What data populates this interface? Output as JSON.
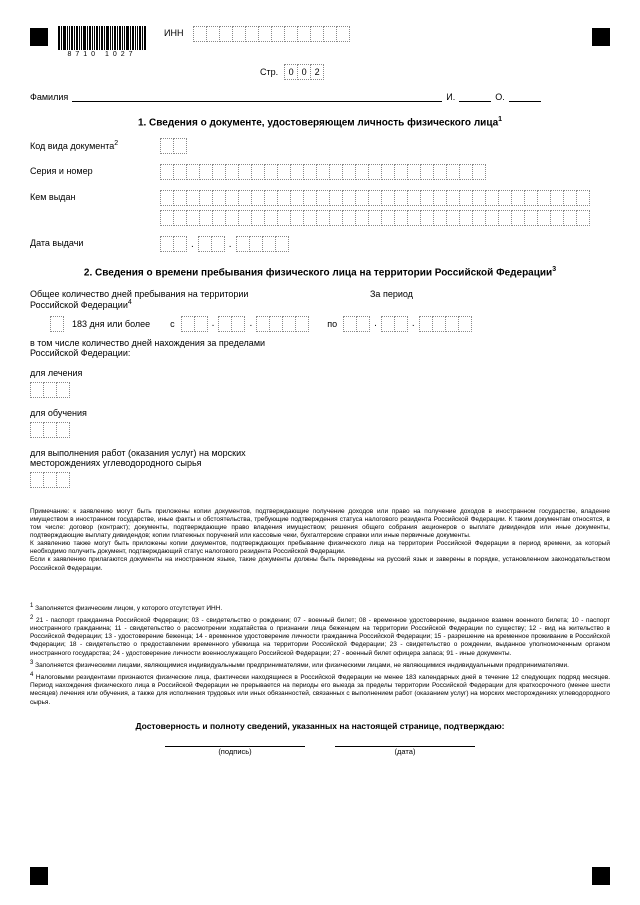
{
  "header": {
    "barcode_num": "8710   1027",
    "inn_label": "ИНН",
    "page_label": "Стр.",
    "page_digits": [
      "0",
      "0",
      "2"
    ]
  },
  "fio": {
    "surname_label": "Фамилия",
    "i_label": "И.",
    "o_label": "О."
  },
  "section1": {
    "title": "1. Сведения о документе, удостоверяющем личность физического лица",
    "code_label": "Код вида документа",
    "series_label": "Серия и номер",
    "issuer_label": "Кем выдан",
    "date_label": "Дата выдачи"
  },
  "section2": {
    "title": "2. Сведения о времени пребывания физического лица на территории Российской Федерации",
    "total_label": "Общее количество дней пребывания на территории Российской Федерации",
    "period_label": "За период",
    "days_label": "183 дня или более",
    "from_label": "с",
    "to_label": "по",
    "outside_label": "в том числе количество дней нахождения за пределами Российской Федерации:",
    "treatment_label": "для лечения",
    "study_label": "для обучения",
    "work_label": "для выполнения работ (оказания услуг) на морских месторождениях углеводородного сырья"
  },
  "note": "Примечание: к заявлению могут быть приложены копии документов, подтверждающие получение доходов или право на получение доходов в иностранном государстве, владение имуществом в иностранном государстве, иные факты и обстоятельства, требующие подтверждения статуса налогового резидента Российской Федерации. К таким документам относятся, в том числе: договор (контракт); документы, подтверждающие право владения имуществом; решения общего собрания акционеров о выплате дивидендов или иные документы, подтверждающие выплату дивидендов; копии платежных поручений или кассовые чеки, бухгалтерские справки или иные первичные документы.\nК заявлению также могут быть приложены копии документов, подтверждающих пребывание физического лица на территории Российской Федерации в период времени, за который необходимо получить документ, подтверждающий статус налогового резидента Российской Федерации.\nЕсли к заявлению прилагаются документы на иностранном языке, такие документы должны быть переведены на русский язык и заверены в порядке, установленном законодательством Российской Федерации.",
  "footnotes": {
    "f1": "Заполняется физическим лицом, у которого отсутствует ИНН.",
    "f2": "21 - паспорт гражданина Российской Федерации; 03 - свидетельство о рождении; 07 - военный билет; 08 - временное удостоверение, выданное взамен военного билета; 10 - паспорт иностранного гражданина; 11 - свидетельство о рассмотрении ходатайства о признании лица беженцем на территории Российской Федерации по существу; 12 - вид на жительство в Российской Федерации; 13 - удостоверение беженца; 14 - временное удостоверение личности гражданина Российской Федерации; 15 - разрешение на временное проживание в Российской Федерации; 18 - свидетельство о предоставлении временного убежища на территории Российской Федерации; 23 - свидетельство о рождении, выданное уполномоченным органом иностранного государства; 24 - удостоверение личности военнослужащего Российской Федерации; 27 - военный билет офицера запаса; 91 - иные документы.",
    "f3": "Заполняется физическими лицами, являющимися индивидуальными предпринимателями, или физическими лицами, не являющимися индивидуальными предпринимателями.",
    "f4": "Налоговыми резидентами признаются физические лица, фактически находящиеся в Российской Федерации не менее 183 календарных дней в течение 12 следующих подряд месяцев. Период нахождения физического лица в Российской Федерации не прерывается на периоды его выезда за пределы территории Российской Федерации для краткосрочного (менее шести месяцев) лечения или обучения, а также для исполнения трудовых или иных обязанностей, связанных с выполнением работ (оказанием услуг) на морских месторождениях углеводородного сырья."
  },
  "confirm": {
    "title": "Достоверность и полноту сведений, указанных на настоящей странице, подтверждаю:",
    "sig_label": "(подпись)",
    "date_label": "(дата)"
  },
  "style": {
    "cell_border": "#888888",
    "text_color": "#000000",
    "bg": "#ffffff"
  }
}
